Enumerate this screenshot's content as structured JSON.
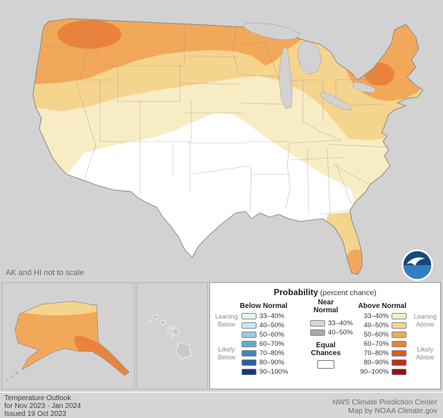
{
  "map": {
    "note": "AK and HI not to scale",
    "colors": {
      "background": "#d2d2d2",
      "equal_chances": "#ffffff",
      "above_33_40": "#f7ecc3",
      "above_40_50": "#f5d48e",
      "above_50_60": "#f2a859",
      "above_60_70": "#e9833c"
    }
  },
  "legend": {
    "title": "Probability",
    "title_suffix": " (percent chance)",
    "below": {
      "header": "Below Normal",
      "leaning": "Leaning Below",
      "likely": "Likely Below",
      "items": [
        {
          "label": "33–40%",
          "color": "#e7f2f9"
        },
        {
          "label": "40–50%",
          "color": "#c8e5f2"
        },
        {
          "label": "50–60%",
          "color": "#97cbe2"
        },
        {
          "label": "60–70%",
          "color": "#64a9d4"
        },
        {
          "label": "70–80%",
          "color": "#3d85c0"
        },
        {
          "label": "80–90%",
          "color": "#265ea7"
        },
        {
          "label": "90–100%",
          "color": "#16367f"
        }
      ]
    },
    "near": {
      "header": "Near Normal",
      "equal": "Equal Chances",
      "equal_color": "#ffffff",
      "items": [
        {
          "label": "33–40%",
          "color": "#d8d8d8"
        },
        {
          "label": "40–50%",
          "color": "#a8a8a8"
        }
      ]
    },
    "above": {
      "header": "Above Normal",
      "leaning": "Leaning Above",
      "likely": "Likely Above",
      "items": [
        {
          "label": "33–40%",
          "color": "#f7ecc3"
        },
        {
          "label": "40–50%",
          "color": "#f5d48e"
        },
        {
          "label": "50–60%",
          "color": "#f2a859"
        },
        {
          "label": "60–70%",
          "color": "#e9833c"
        },
        {
          "label": "70–80%",
          "color": "#de5826"
        },
        {
          "label": "80–90%",
          "color": "#bd2d18"
        },
        {
          "label": "90–100%",
          "color": "#8d130e"
        }
      ]
    }
  },
  "footer": {
    "title": "Temperature Outlook",
    "period": "for Nov 2023 - Jan 2024",
    "issued": "Issued 19 Oct 2023",
    "credit1": "NWS Climate Prediction Center",
    "credit2": "Map by NOAA Climate.gov"
  }
}
